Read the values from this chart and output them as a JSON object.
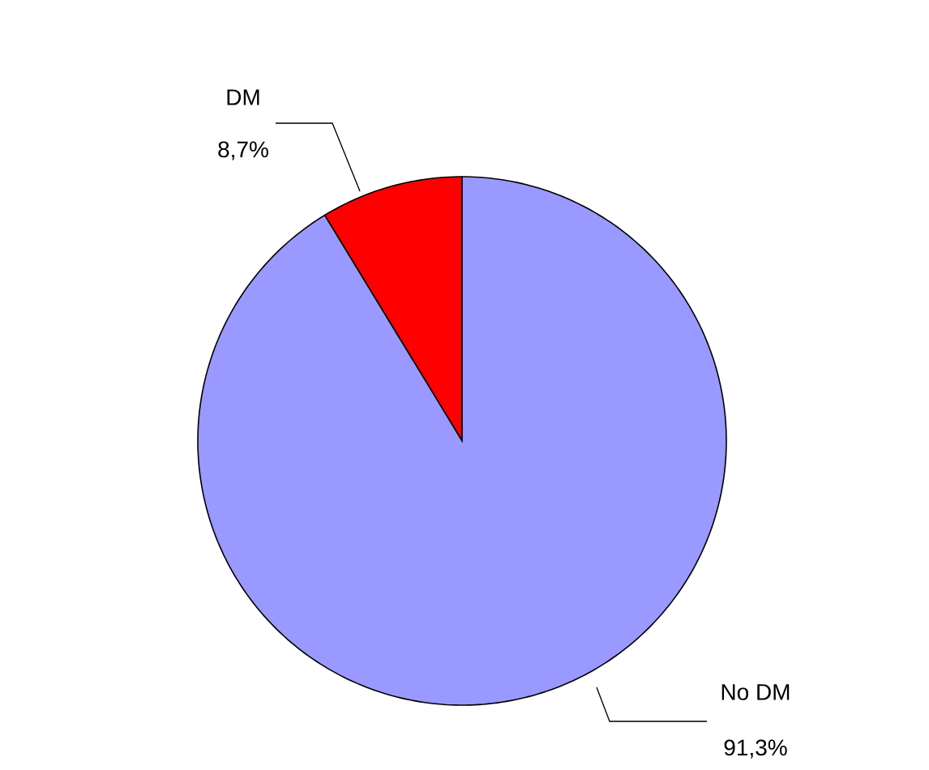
{
  "chart_data": {
    "type": "pie",
    "categories": [
      "DM",
      "No DM"
    ],
    "values": [
      8.7,
      91.3
    ],
    "colors": [
      "#ff0000",
      "#9999ff"
    ],
    "value_labels": [
      "8,7%",
      "91,3%"
    ]
  }
}
